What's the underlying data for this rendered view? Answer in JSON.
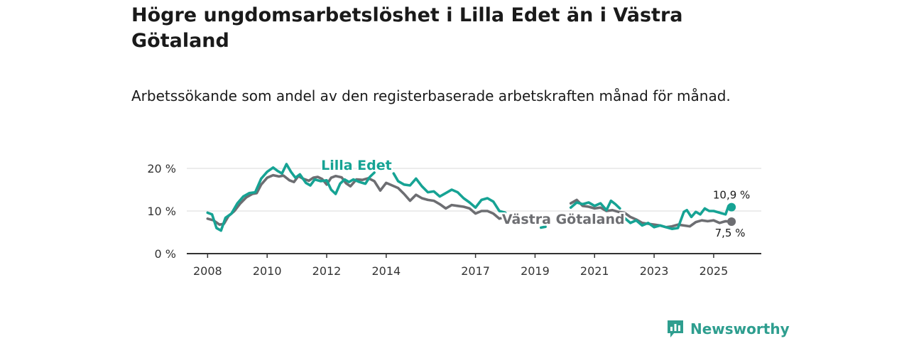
{
  "title": "Högre ungdomsarbetslöshet i Lilla Edet än i Västra Götaland",
  "subtitle": "Arbetssökande som andel av den registerbaserade arbetskraften månad för månad.",
  "brand": "Newsworthy",
  "colors": {
    "lilla_edet": "#16a394",
    "vastra_gotaland": "#6d6e72",
    "axis": "#333333",
    "grid": "#d9d9d9"
  },
  "chart_data": {
    "type": "line",
    "title": "Högre ungdomsarbetslöshet i Lilla Edet än i Västra Götaland",
    "xlabel": "",
    "ylabel": "",
    "xlim": [
      2007.3,
      2026.6
    ],
    "ylim": [
      0,
      20
    ],
    "y_ticks": [
      0,
      10,
      20
    ],
    "y_tick_labels": [
      "0 %",
      "10 %",
      "20 %"
    ],
    "x_ticks": [
      2008,
      2010,
      2012,
      2014,
      2017,
      2019,
      2021,
      2023,
      2025
    ],
    "x_tick_labels": [
      "2008",
      "2010",
      "2012",
      "2014",
      "2017",
      "2019",
      "2021",
      "2023",
      "2025"
    ],
    "grid": true,
    "series": [
      {
        "name": "Västra Götaland",
        "label": "Västra Götaland",
        "end_label": "7,5 %",
        "color": "#6d6e72",
        "points": [
          [
            2008.0,
            8.2
          ],
          [
            2008.2,
            7.8
          ],
          [
            2008.4,
            6.8
          ],
          [
            2008.55,
            7.0
          ],
          [
            2008.7,
            8.8
          ],
          [
            2008.9,
            10.0
          ],
          [
            2009.1,
            11.8
          ],
          [
            2009.3,
            13.2
          ],
          [
            2009.5,
            14.0
          ],
          [
            2009.65,
            14.2
          ],
          [
            2009.8,
            16.2
          ],
          [
            2010.0,
            17.8
          ],
          [
            2010.2,
            18.4
          ],
          [
            2010.4,
            18.1
          ],
          [
            2010.55,
            18.3
          ],
          [
            2010.75,
            17.2
          ],
          [
            2010.9,
            16.8
          ],
          [
            2011.05,
            18.2
          ],
          [
            2011.2,
            17.6
          ],
          [
            2011.4,
            17.1
          ],
          [
            2011.55,
            17.8
          ],
          [
            2011.7,
            18.0
          ],
          [
            2011.85,
            17.5
          ],
          [
            2012.0,
            16.2
          ],
          [
            2012.15,
            17.8
          ],
          [
            2012.3,
            18.2
          ],
          [
            2012.5,
            17.9
          ],
          [
            2012.65,
            16.5
          ],
          [
            2012.8,
            15.8
          ],
          [
            2013.0,
            17.4
          ],
          [
            2013.2,
            17.3
          ],
          [
            2013.4,
            17.7
          ],
          [
            2013.6,
            17.0
          ],
          [
            2013.8,
            14.8
          ],
          [
            2014.0,
            16.6
          ],
          [
            2014.2,
            16.0
          ],
          [
            2014.4,
            15.4
          ],
          [
            2014.6,
            14.0
          ],
          [
            2014.8,
            12.4
          ],
          [
            2015.0,
            13.8
          ],
          [
            2015.2,
            13.0
          ],
          [
            2015.4,
            12.6
          ],
          [
            2015.6,
            12.4
          ],
          [
            2015.8,
            11.6
          ],
          [
            2016.0,
            10.6
          ],
          [
            2016.2,
            11.4
          ],
          [
            2016.4,
            11.2
          ],
          [
            2016.6,
            11.0
          ],
          [
            2016.8,
            10.6
          ],
          [
            2017.0,
            9.4
          ],
          [
            2017.2,
            10.0
          ],
          [
            2017.4,
            10.0
          ],
          [
            2017.6,
            9.4
          ],
          [
            2017.8,
            8.2
          ],
          [
            2018.0,
            8.6
          ]
        ]
      },
      {
        "name": "Västra Götaland (2020–2025)",
        "label": "",
        "color": "#6d6e72",
        "points": [
          [
            2020.2,
            11.8
          ],
          [
            2020.4,
            12.6
          ],
          [
            2020.6,
            11.2
          ],
          [
            2020.8,
            11.0
          ],
          [
            2021.0,
            10.6
          ],
          [
            2021.2,
            10.8
          ],
          [
            2021.4,
            10.0
          ],
          [
            2021.6,
            10.2
          ],
          [
            2021.8,
            9.8
          ],
          [
            2022.0,
            9.6
          ],
          [
            2022.2,
            8.6
          ],
          [
            2022.4,
            8.0
          ],
          [
            2022.6,
            7.2
          ],
          [
            2022.8,
            7.0
          ],
          [
            2023.0,
            6.8
          ],
          [
            2023.2,
            6.6
          ],
          [
            2023.4,
            6.2
          ],
          [
            2023.6,
            6.4
          ],
          [
            2023.8,
            6.8
          ],
          [
            2024.0,
            6.6
          ],
          [
            2024.2,
            6.4
          ],
          [
            2024.4,
            7.4
          ],
          [
            2024.6,
            7.8
          ],
          [
            2024.8,
            7.6
          ],
          [
            2025.0,
            7.8
          ],
          [
            2025.2,
            7.2
          ],
          [
            2025.4,
            7.6
          ],
          [
            2025.6,
            7.5
          ]
        ]
      },
      {
        "name": "Lilla Edet",
        "label": "Lilla Edet",
        "end_label": "10,9 %",
        "color": "#16a394",
        "points": [
          [
            2008.0,
            9.6
          ],
          [
            2008.15,
            9.2
          ],
          [
            2008.3,
            6.0
          ],
          [
            2008.45,
            5.4
          ],
          [
            2008.6,
            8.4
          ],
          [
            2008.8,
            9.4
          ],
          [
            2009.0,
            11.8
          ],
          [
            2009.2,
            13.4
          ],
          [
            2009.4,
            14.2
          ],
          [
            2009.6,
            14.4
          ],
          [
            2009.8,
            17.6
          ],
          [
            2010.0,
            19.2
          ],
          [
            2010.2,
            20.2
          ],
          [
            2010.35,
            19.4
          ],
          [
            2010.5,
            18.8
          ],
          [
            2010.65,
            21.0
          ],
          [
            2010.8,
            19.2
          ],
          [
            2010.95,
            17.8
          ],
          [
            2011.1,
            18.6
          ],
          [
            2011.3,
            16.6
          ],
          [
            2011.45,
            16.0
          ],
          [
            2011.6,
            17.4
          ],
          [
            2011.8,
            17.0
          ],
          [
            2012.0,
            17.2
          ],
          [
            2012.15,
            15.0
          ],
          [
            2012.3,
            14.0
          ],
          [
            2012.45,
            16.4
          ],
          [
            2012.6,
            17.4
          ],
          [
            2012.75,
            16.8
          ],
          [
            2012.9,
            17.4
          ],
          [
            2013.1,
            16.8
          ],
          [
            2013.3,
            16.4
          ],
          [
            2013.45,
            18.0
          ],
          [
            2013.6,
            19.0
          ]
        ]
      },
      {
        "name": "Lilla Edet (2014–2017)",
        "label": "",
        "color": "#16a394",
        "points": [
          [
            2014.25,
            18.8
          ],
          [
            2014.4,
            17.0
          ],
          [
            2014.6,
            16.2
          ],
          [
            2014.8,
            16.0
          ],
          [
            2015.0,
            17.6
          ],
          [
            2015.2,
            15.8
          ],
          [
            2015.4,
            14.4
          ],
          [
            2015.6,
            14.6
          ],
          [
            2015.8,
            13.4
          ],
          [
            2016.0,
            14.2
          ],
          [
            2016.2,
            15.0
          ],
          [
            2016.4,
            14.4
          ],
          [
            2016.6,
            13.0
          ],
          [
            2016.8,
            12.0
          ],
          [
            2017.0,
            10.8
          ],
          [
            2017.2,
            12.6
          ],
          [
            2017.4,
            13.0
          ],
          [
            2017.6,
            12.2
          ],
          [
            2017.8,
            10.0
          ],
          [
            2018.0,
            9.6
          ]
        ]
      },
      {
        "name": "Lilla Edet (2018–2020)",
        "label": "",
        "color": "#16a394",
        "points": [
          [
            2019.2,
            6.1
          ],
          [
            2019.35,
            6.3
          ]
        ]
      },
      {
        "name": "Lilla Edet (2020–2025)",
        "label": "",
        "color": "#16a394",
        "points": [
          [
            2020.2,
            10.8
          ],
          [
            2020.4,
            12.0
          ],
          [
            2020.6,
            11.6
          ],
          [
            2020.8,
            12.0
          ],
          [
            2021.0,
            11.2
          ],
          [
            2021.2,
            11.8
          ],
          [
            2021.4,
            10.2
          ],
          [
            2021.55,
            12.4
          ],
          [
            2021.7,
            11.6
          ],
          [
            2021.85,
            10.6
          ]
        ]
      },
      {
        "name": "Lilla Edet (2022–2025)",
        "label": "",
        "color": "#16a394",
        "points": [
          [
            2022.0,
            8.4
          ],
          [
            2022.2,
            7.2
          ],
          [
            2022.4,
            7.8
          ],
          [
            2022.6,
            6.6
          ],
          [
            2022.8,
            7.2
          ],
          [
            2023.0,
            6.2
          ],
          [
            2023.2,
            6.6
          ],
          [
            2023.4,
            6.2
          ],
          [
            2023.6,
            5.8
          ],
          [
            2023.8,
            6.0
          ],
          [
            2024.0,
            9.8
          ],
          [
            2024.1,
            10.2
          ],
          [
            2024.25,
            8.6
          ],
          [
            2024.4,
            9.8
          ],
          [
            2024.55,
            9.2
          ],
          [
            2024.7,
            10.6
          ],
          [
            2024.85,
            10.0
          ],
          [
            2025.0,
            10.0
          ],
          [
            2025.2,
            9.6
          ],
          [
            2025.4,
            9.2
          ],
          [
            2025.5,
            11.2
          ],
          [
            2025.6,
            10.9
          ]
        ]
      }
    ]
  }
}
